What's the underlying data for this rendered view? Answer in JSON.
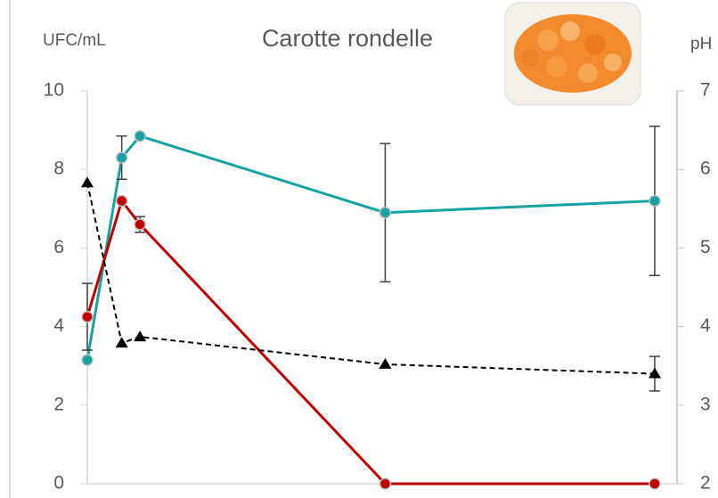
{
  "chart_data": {
    "type": "line",
    "title": "Carotte rondelle",
    "y_label": "UFC/mL",
    "y2_label": "pH",
    "x": [
      0,
      1.7,
      2.6,
      14.7,
      28
    ],
    "xlim": [
      0,
      29.1
    ],
    "ylim": [
      0,
      10
    ],
    "yticks": [
      0,
      2,
      4,
      6,
      8,
      10
    ],
    "y2lim": [
      2,
      7
    ],
    "y2ticks": [
      2,
      3,
      4,
      5,
      6,
      7
    ],
    "series": [
      {
        "color": "#17a2a2",
        "values": [
          3.15,
          8.3,
          8.85,
          6.9,
          7.2
        ],
        "errors": [
          null,
          0.55,
          null,
          1.76,
          1.9
        ],
        "marker": "circle",
        "dashed": false
      },
      {
        "color": "#c00000",
        "values": [
          4.25,
          7.2,
          6.6,
          0,
          0
        ],
        "errors": [
          0.85,
          null,
          0.2,
          null,
          null
        ],
        "marker": "circle",
        "dashed": false
      },
      {
        "color": "#000000",
        "values": [
          5.83,
          3.79,
          3.87,
          3.52,
          3.4
        ],
        "errors": [
          null,
          null,
          null,
          null,
          0.22
        ],
        "marker": "triangle",
        "dashed": true,
        "axis": "y2"
      }
    ]
  }
}
